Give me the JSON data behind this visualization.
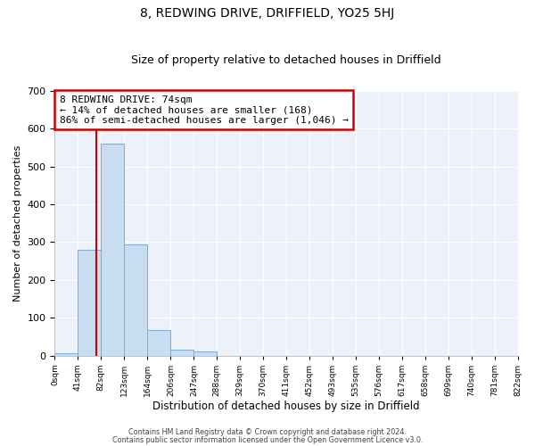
{
  "title": "8, REDWING DRIVE, DRIFFIELD, YO25 5HJ",
  "subtitle": "Size of property relative to detached houses in Driffield",
  "xlabel": "Distribution of detached houses by size in Driffield",
  "ylabel": "Number of detached properties",
  "bin_edges": [
    0,
    41,
    82,
    123,
    164,
    206,
    247,
    288,
    329,
    370,
    411,
    452,
    493,
    535,
    576,
    617,
    658,
    699,
    740,
    781,
    822
  ],
  "bar_heights": [
    7,
    280,
    560,
    293,
    68,
    16,
    10,
    0,
    0,
    0,
    0,
    0,
    0,
    0,
    0,
    0,
    0,
    0,
    0,
    0
  ],
  "bar_color": "#c9ddf2",
  "bar_edge_color": "#7aadd4",
  "property_line_x": 74,
  "property_line_color": "#cc0000",
  "annotation_line1": "8 REDWING DRIVE: 74sqm",
  "annotation_line2": "← 14% of detached houses are smaller (168)",
  "annotation_line3": "86% of semi-detached houses are larger (1,046) →",
  "annotation_box_color": "#ffffff",
  "annotation_box_edge": "#cc0000",
  "ylim": [
    0,
    700
  ],
  "yticks": [
    0,
    100,
    200,
    300,
    400,
    500,
    600,
    700
  ],
  "footer_line1": "Contains HM Land Registry data © Crown copyright and database right 2024.",
  "footer_line2": "Contains public sector information licensed under the Open Government Licence v3.0.",
  "bg_color": "#edf2fa",
  "tick_labels": [
    "0sqm",
    "41sqm",
    "82sqm",
    "123sqm",
    "164sqm",
    "206sqm",
    "247sqm",
    "288sqm",
    "329sqm",
    "370sqm",
    "411sqm",
    "452sqm",
    "493sqm",
    "535sqm",
    "576sqm",
    "617sqm",
    "658sqm",
    "699sqm",
    "740sqm",
    "781sqm",
    "822sqm"
  ],
  "title_fontsize": 10,
  "subtitle_fontsize": 9
}
